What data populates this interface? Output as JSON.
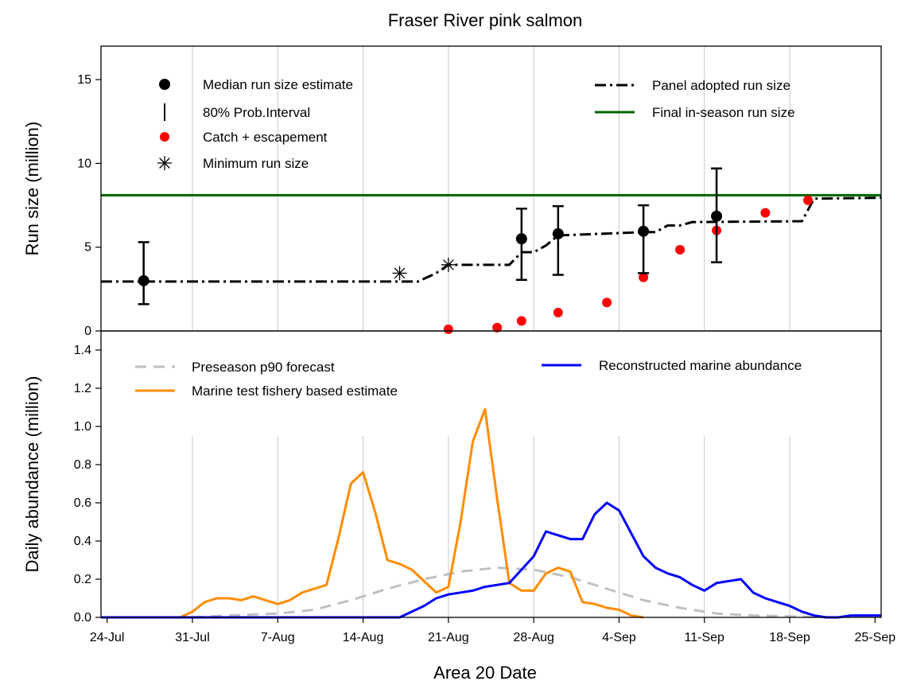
{
  "title": "Fraser River pink salmon",
  "xlabel": "Area 20 Date",
  "colors": {
    "median": "#000000",
    "catch": "#ff0000",
    "final": "#006400",
    "forecast": "#c0c0c0",
    "testfishery": "#ff8c00",
    "marine": "#0000ff",
    "grid": "#c8c8c8"
  },
  "chart_data": [
    {
      "type": "scatter",
      "panel": "top",
      "ylabel": "Run size (million)",
      "ylim": [
        0,
        17
      ],
      "xlim": [
        -0.5,
        63.5
      ],
      "yticks": [
        0,
        5,
        10,
        15
      ],
      "x_ticks": [
        {
          "day": 0,
          "label": "24-Jul"
        },
        {
          "day": 7,
          "label": "31-Jul"
        },
        {
          "day": 14,
          "label": "7-Aug"
        },
        {
          "day": 21,
          "label": "14-Aug"
        },
        {
          "day": 28,
          "label": "21-Aug"
        },
        {
          "day": 35,
          "label": "28-Aug"
        },
        {
          "day": 42,
          "label": "4-Sep"
        },
        {
          "day": 49,
          "label": "11-Sep"
        },
        {
          "day": 56,
          "label": "18-Sep"
        },
        {
          "day": 63,
          "label": "25-Sep"
        }
      ],
      "legend": {
        "median": "Median run size estimate",
        "interval": "80% Prob.Interval",
        "catch": "Catch + escapement",
        "minimum": "Minimum run size",
        "panel": "Panel adopted run size",
        "final": "Final in-season run size"
      },
      "median_estimates": [
        {
          "x": 3,
          "y": 3.0,
          "lo": 1.6,
          "hi": 5.3
        },
        {
          "x": 34,
          "y": 5.5,
          "lo": 3.05,
          "hi": 7.3
        },
        {
          "x": 37,
          "y": 5.8,
          "lo": 3.35,
          "hi": 7.45
        },
        {
          "x": 44,
          "y": 5.95,
          "lo": 3.45,
          "hi": 7.5
        },
        {
          "x": 50,
          "y": 6.85,
          "lo": 4.1,
          "hi": 9.7
        }
      ],
      "catch_escapement": [
        {
          "x": 28,
          "y": 0.1
        },
        {
          "x": 32,
          "y": 0.2
        },
        {
          "x": 34,
          "y": 0.6
        },
        {
          "x": 37,
          "y": 1.1
        },
        {
          "x": 41,
          "y": 1.7
        },
        {
          "x": 44,
          "y": 3.2
        },
        {
          "x": 47,
          "y": 4.85
        },
        {
          "x": 50,
          "y": 6.0
        },
        {
          "x": 54,
          "y": 7.05
        },
        {
          "x": 57.5,
          "y": 7.8
        }
      ],
      "minimum_run": [
        {
          "x": 24,
          "y": 3.45
        },
        {
          "x": 28,
          "y": 3.95
        }
      ],
      "panel_adopted": {
        "x": [
          -0.5,
          25,
          25.5,
          27,
          28,
          33,
          34,
          35,
          36,
          37,
          44,
          45,
          46,
          47,
          48,
          57,
          58,
          63.5
        ],
        "y": [
          2.95,
          2.95,
          2.95,
          3.45,
          3.95,
          3.95,
          4.7,
          4.7,
          5.1,
          5.7,
          5.9,
          5.9,
          6.3,
          6.3,
          6.5,
          6.55,
          7.9,
          7.95
        ]
      },
      "final_in_season": 8.1
    },
    {
      "type": "line",
      "panel": "bottom",
      "ylabel": "Daily abundance (million)",
      "ylim": [
        0,
        1.5
      ],
      "xlim": [
        -0.5,
        63.5
      ],
      "yticks": [
        0.0,
        0.2,
        0.4,
        0.6,
        0.8,
        1.0,
        1.2,
        1.4
      ],
      "ytick_labels": [
        "0.0",
        "0.2",
        "0.4",
        "0.6",
        "0.8",
        "1.0",
        "1.2",
        "1.4"
      ],
      "series": [
        {
          "name": "Preseason p90 forecast",
          "key": "forecast",
          "x": [
            7,
            10,
            14,
            17,
            20,
            23,
            26,
            29,
            32,
            35,
            38,
            41,
            44,
            47,
            50,
            53,
            56,
            60
          ],
          "y": [
            0.0,
            0.01,
            0.02,
            0.04,
            0.09,
            0.15,
            0.2,
            0.24,
            0.26,
            0.25,
            0.21,
            0.15,
            0.09,
            0.05,
            0.02,
            0.01,
            0.005,
            0.0
          ]
        },
        {
          "name": "Marine test fishery based estimate",
          "key": "testfishery",
          "x": [
            -0.5,
            6,
            7,
            8,
            9,
            10,
            11,
            12,
            13,
            14,
            15,
            16,
            17,
            18,
            19,
            20,
            21,
            22,
            23,
            24,
            25,
            26,
            27,
            28,
            29,
            30,
            31,
            32,
            33,
            34,
            35,
            36,
            37,
            38,
            39,
            40,
            41,
            42,
            43,
            44
          ],
          "y": [
            0.0,
            0.0,
            0.03,
            0.08,
            0.1,
            0.1,
            0.09,
            0.11,
            0.09,
            0.07,
            0.09,
            0.13,
            0.15,
            0.17,
            0.42,
            0.7,
            0.76,
            0.55,
            0.3,
            0.28,
            0.25,
            0.19,
            0.13,
            0.16,
            0.5,
            0.92,
            1.09,
            0.62,
            0.18,
            0.14,
            0.14,
            0.23,
            0.26,
            0.24,
            0.08,
            0.07,
            0.05,
            0.04,
            0.01,
            0.0
          ]
        },
        {
          "name": "Reconstructed marine abundance",
          "key": "marine",
          "x": [
            -0.5,
            22,
            23,
            24,
            25,
            26,
            27,
            28,
            29,
            30,
            31,
            32,
            33,
            34,
            35,
            36,
            37,
            38,
            39,
            40,
            41,
            42,
            43,
            44,
            45,
            46,
            47,
            48,
            49,
            50,
            51,
            52,
            53,
            54,
            55,
            56,
            57,
            58,
            59,
            60,
            61,
            62,
            63.5
          ],
          "y": [
            0.0,
            0.0,
            0.0,
            0.0,
            0.03,
            0.06,
            0.1,
            0.12,
            0.13,
            0.14,
            0.16,
            0.17,
            0.18,
            0.25,
            0.32,
            0.45,
            0.43,
            0.41,
            0.41,
            0.54,
            0.6,
            0.56,
            0.44,
            0.32,
            0.26,
            0.23,
            0.21,
            0.17,
            0.14,
            0.18,
            0.19,
            0.2,
            0.13,
            0.1,
            0.08,
            0.06,
            0.03,
            0.01,
            0.0,
            0.0,
            0.01,
            0.01,
            0.01
          ]
        }
      ]
    }
  ]
}
